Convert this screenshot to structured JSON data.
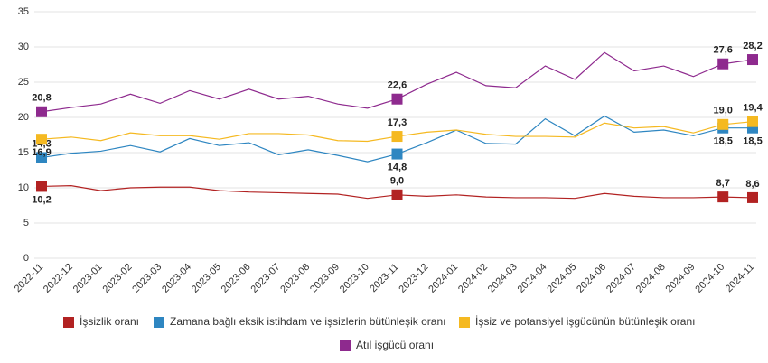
{
  "chart_data": {
    "type": "line",
    "categories": [
      "2022-11",
      "2022-12",
      "2023-01",
      "2023-02",
      "2023-03",
      "2023-04",
      "2023-05",
      "2023-06",
      "2023-07",
      "2023-08",
      "2023-09",
      "2023-10",
      "2023-11",
      "2023-12",
      "2024-01",
      "2024-02",
      "2024-03",
      "2024-04",
      "2024-05",
      "2024-06",
      "2024-07",
      "2024-08",
      "2024-09",
      "2024-10",
      "2024-11"
    ],
    "series": [
      {
        "name": "İşsizlik oranı",
        "color": "#b22222",
        "values": [
          10.2,
          10.3,
          9.6,
          10.0,
          10.1,
          10.1,
          9.6,
          9.4,
          9.3,
          9.2,
          9.1,
          8.5,
          9.0,
          8.8,
          9.0,
          8.7,
          8.6,
          8.6,
          8.5,
          9.2,
          8.8,
          8.6,
          8.6,
          8.7,
          8.6
        ],
        "value_labels": [
          "10,2",
          null,
          null,
          null,
          null,
          null,
          null,
          null,
          null,
          null,
          null,
          null,
          "9,0",
          null,
          null,
          null,
          null,
          null,
          null,
          null,
          null,
          null,
          null,
          "8,7",
          "8,6"
        ]
      },
      {
        "name": "Zamana bağlı eksik istihdam ve işsizlerin bütünleşik oranı",
        "color": "#2e86c1",
        "values": [
          14.3,
          14.9,
          15.2,
          16.0,
          15.1,
          17.0,
          16.0,
          16.4,
          14.7,
          15.4,
          14.6,
          13.7,
          14.8,
          16.4,
          18.2,
          16.3,
          16.2,
          19.8,
          17.4,
          20.2,
          17.9,
          18.2,
          17.4,
          18.5,
          18.5
        ],
        "value_labels": [
          "14,3",
          null,
          null,
          null,
          null,
          null,
          null,
          null,
          null,
          null,
          null,
          null,
          "14,8",
          null,
          null,
          null,
          null,
          null,
          null,
          null,
          null,
          null,
          null,
          "18,5",
          "18,5"
        ]
      },
      {
        "name": "İşsiz ve potansiyel işgücünün bütünleşik oranı",
        "color": "#f5b921",
        "values": [
          16.9,
          17.2,
          16.7,
          17.8,
          17.4,
          17.4,
          16.9,
          17.7,
          17.7,
          17.5,
          16.7,
          16.6,
          17.3,
          17.9,
          18.2,
          17.6,
          17.3,
          17.3,
          17.2,
          19.2,
          18.5,
          18.7,
          17.8,
          19.0,
          19.4
        ],
        "value_labels": [
          "16,9",
          null,
          null,
          null,
          null,
          null,
          null,
          null,
          null,
          null,
          null,
          null,
          "17,3",
          null,
          null,
          null,
          null,
          null,
          null,
          null,
          null,
          null,
          null,
          "19,0",
          "19,4"
        ]
      },
      {
        "name": "Atıl işgücü oranı",
        "color": "#8e2a8e",
        "values": [
          20.8,
          21.4,
          21.9,
          23.3,
          22.0,
          23.8,
          22.6,
          24.0,
          22.6,
          23.0,
          21.9,
          21.3,
          22.6,
          24.7,
          26.4,
          24.5,
          24.2,
          27.3,
          25.4,
          29.2,
          26.6,
          27.3,
          25.8,
          27.6,
          28.2
        ],
        "value_labels": [
          "20,8",
          null,
          null,
          null,
          null,
          null,
          null,
          null,
          null,
          null,
          null,
          null,
          "22,6",
          null,
          null,
          null,
          null,
          null,
          null,
          null,
          null,
          null,
          null,
          "27,6",
          "28,2"
        ]
      }
    ],
    "ylim": [
      0,
      35
    ],
    "yticks": [
      0,
      5,
      10,
      15,
      20,
      25,
      30,
      35
    ],
    "grid": true
  }
}
